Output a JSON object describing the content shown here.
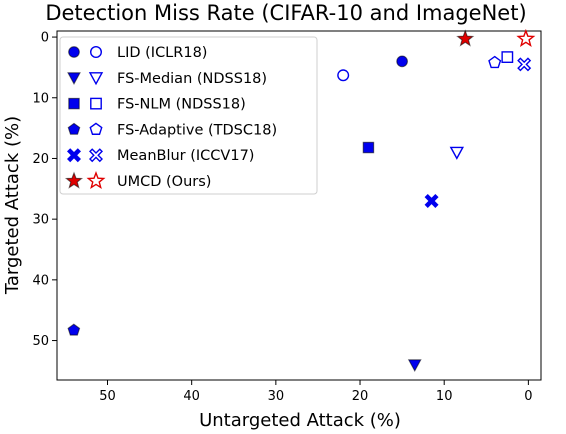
{
  "chart_data": {
    "type": "scatter",
    "title": "Detection Miss Rate (CIFAR-10 and ImageNet)",
    "xlabel": "Untargeted Attack (%)",
    "ylabel": "Targeted Attack (%)",
    "xlim": [
      56,
      -1.5
    ],
    "ylim": [
      56.5,
      -1
    ],
    "x_inverted": true,
    "y_inverted": true,
    "xticks": [
      50,
      40,
      30,
      20,
      10,
      0
    ],
    "yticks": [
      0,
      10,
      20,
      30,
      40,
      50
    ],
    "grid": false,
    "legend_position": "upper-left",
    "series": [
      {
        "name": "LID (ICLR18)",
        "marker": "circle",
        "color": "#0000ee",
        "points": [
          {
            "dataset": "CIFAR-10",
            "filled": true,
            "x": 15.0,
            "y": 4.0
          },
          {
            "dataset": "ImageNet",
            "filled": false,
            "x": 22.0,
            "y": 6.3
          }
        ]
      },
      {
        "name": "FS-Median (NDSS18)",
        "marker": "triangle-down",
        "color": "#0000ee",
        "points": [
          {
            "dataset": "CIFAR-10",
            "filled": true,
            "x": 13.5,
            "y": 54.0
          },
          {
            "dataset": "ImageNet",
            "filled": false,
            "x": 8.5,
            "y": 19.0
          }
        ]
      },
      {
        "name": "FS-NLM (NDSS18)",
        "marker": "square",
        "color": "#0000ee",
        "points": [
          {
            "dataset": "CIFAR-10",
            "filled": true,
            "x": 19.0,
            "y": 18.2
          },
          {
            "dataset": "ImageNet",
            "filled": false,
            "x": 2.5,
            "y": 3.3
          }
        ]
      },
      {
        "name": "FS-Adaptive (TDSC18)",
        "marker": "pentagon",
        "color": "#0000ee",
        "points": [
          {
            "dataset": "CIFAR-10",
            "filled": true,
            "x": 54.0,
            "y": 48.3
          },
          {
            "dataset": "ImageNet",
            "filled": false,
            "x": 4.0,
            "y": 4.2
          }
        ]
      },
      {
        "name": "MeanBlur (ICCV17)",
        "marker": "x",
        "color": "#0000ee",
        "points": [
          {
            "dataset": "CIFAR-10",
            "filled": true,
            "x": 11.5,
            "y": 27.0
          },
          {
            "dataset": "ImageNet",
            "filled": false,
            "x": 0.5,
            "y": 4.5
          }
        ]
      },
      {
        "name": "UMCD (Ours)",
        "marker": "star",
        "color": "#e00000",
        "points": [
          {
            "dataset": "CIFAR-10",
            "filled": true,
            "x": 7.5,
            "y": 0.3
          },
          {
            "dataset": "ImageNet",
            "filled": false,
            "x": 0.3,
            "y": 0.3
          }
        ]
      }
    ]
  }
}
